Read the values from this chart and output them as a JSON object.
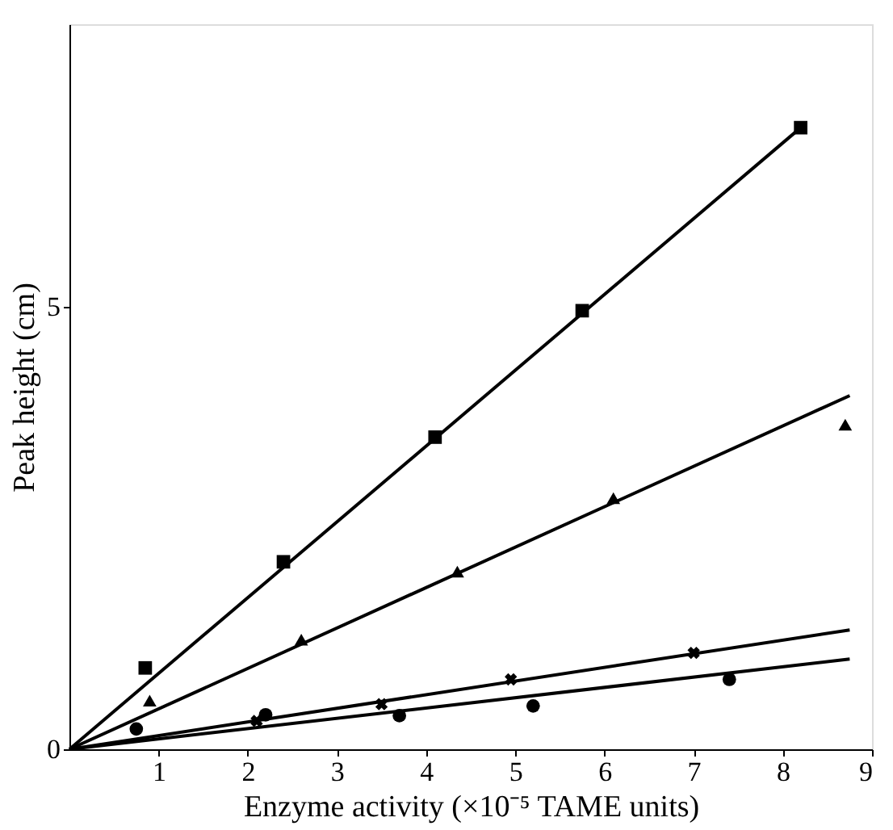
{
  "chart_data": {
    "type": "scatter",
    "xlabel": "Enzyme activity (×10⁻⁵ TAME units)",
    "ylabel": "Peak height (cm)",
    "xlim": [
      0,
      9
    ],
    "ylim": [
      0,
      8.2
    ],
    "xticks": [
      1,
      2,
      3,
      4,
      5,
      6,
      7,
      8,
      9
    ],
    "yticks": [
      0,
      5
    ],
    "grid": false,
    "series": [
      {
        "marker": "square",
        "color": "#000000",
        "x": [
          0.85,
          2.4,
          4.1,
          5.75,
          8.2
        ],
        "values": [
          0.92,
          2.12,
          3.53,
          4.96,
          7.03
        ]
      },
      {
        "marker": "triangle",
        "color": "#000000",
        "x": [
          0.9,
          2.6,
          4.35,
          6.1,
          8.7
        ],
        "values": [
          0.55,
          1.24,
          2.01,
          2.84,
          3.67
        ]
      },
      {
        "marker": "cross",
        "color": "#000000",
        "x": [
          2.1,
          3.5,
          4.95,
          7.0
        ],
        "values": [
          0.32,
          0.51,
          0.79,
          1.09
        ]
      },
      {
        "marker": "circle",
        "color": "#000000",
        "x": [
          0.75,
          2.2,
          3.7,
          5.2,
          7.4
        ],
        "values": [
          0.23,
          0.39,
          0.38,
          0.49,
          0.79
        ]
      },
      {
        "type": "line",
        "line_style": "solid",
        "color": "#000000",
        "x": [
          0,
          8.2
        ],
        "values": [
          0,
          7.03
        ]
      },
      {
        "type": "line",
        "line_style": "solid",
        "color": "#000000",
        "x": [
          0,
          8.75
        ],
        "values": [
          0,
          4.0
        ]
      },
      {
        "type": "line",
        "line_style": "solid",
        "color": "#000000",
        "x": [
          0,
          8.75
        ],
        "values": [
          0,
          1.35
        ]
      },
      {
        "type": "line",
        "line_style": "solid",
        "color": "#000000",
        "x": [
          0,
          8.75
        ],
        "values": [
          0,
          1.02
        ]
      }
    ]
  }
}
